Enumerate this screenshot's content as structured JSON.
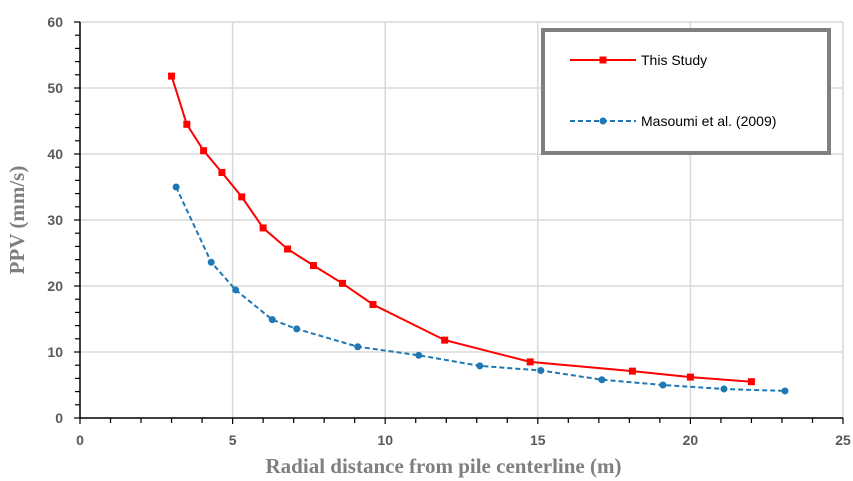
{
  "chart_data": {
    "type": "line",
    "xlabel": "Radial distance from pile centerline (m)",
    "ylabel": "PPV (mm/s)",
    "xlim": [
      0,
      25
    ],
    "ylim": [
      0,
      60
    ],
    "x_ticks": [
      0,
      5,
      10,
      15,
      20,
      25
    ],
    "y_ticks": [
      0,
      10,
      20,
      30,
      40,
      50,
      60
    ],
    "grid": true,
    "legend_position": "top-right",
    "series": [
      {
        "name": "This Study",
        "color": "#ff0000",
        "line_style": "solid",
        "marker": "square",
        "x": [
          3.0,
          3.5,
          4.05,
          4.65,
          5.3,
          6.0,
          6.8,
          7.65,
          8.6,
          9.6,
          11.95,
          14.75,
          18.1,
          20.0,
          22.0
        ],
        "y": [
          51.8,
          44.5,
          40.5,
          37.2,
          33.5,
          28.8,
          25.6,
          23.1,
          20.4,
          17.2,
          11.8,
          8.5,
          7.1,
          6.2,
          5.5
        ]
      },
      {
        "name": "Masoumi et al. (2009)",
        "color": "#1f77b4",
        "line_style": "dashed",
        "marker": "circle",
        "x": [
          3.15,
          4.3,
          5.1,
          6.3,
          7.1,
          9.1,
          11.1,
          13.1,
          15.1,
          17.1,
          19.1,
          21.1,
          23.1
        ],
        "y": [
          35.0,
          23.6,
          19.4,
          14.9,
          13.5,
          10.8,
          9.5,
          7.9,
          7.2,
          5.8,
          5.0,
          4.4,
          4.1
        ]
      }
    ]
  }
}
